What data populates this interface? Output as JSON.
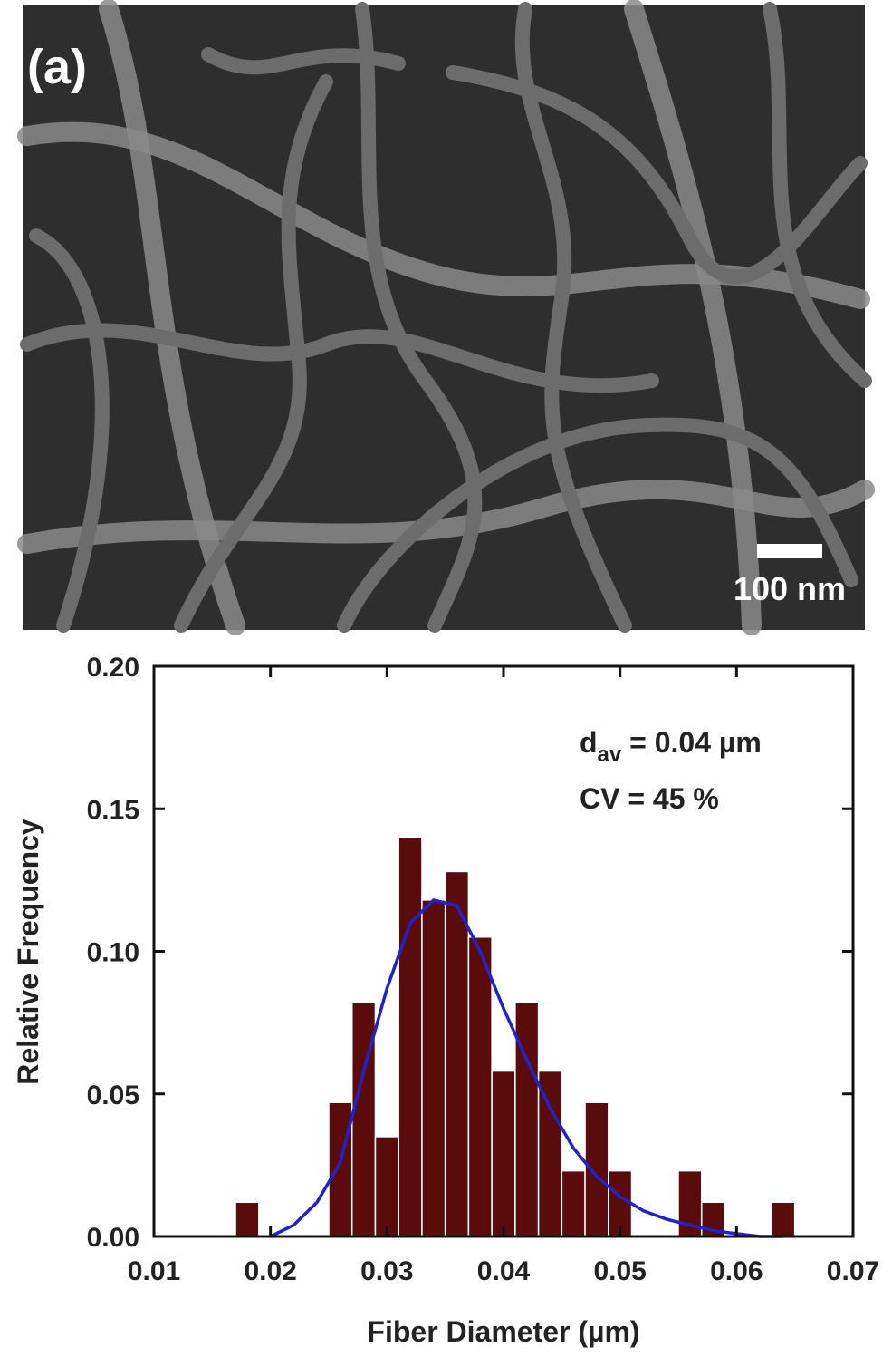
{
  "image": {
    "panel_label": "(a)",
    "scale_bar_label": "100 nm"
  },
  "chart_data": {
    "type": "histogram",
    "x_label": "Fiber Diameter (µm)",
    "y_label": "Relative Frequency",
    "annotations": [
      {
        "text": "d",
        "subscript": "av",
        "after": " = 0.04 µm"
      },
      {
        "text": "CV = 45 %"
      }
    ],
    "bins": [
      0.017,
      0.019,
      0.021,
      0.023,
      0.025,
      0.027,
      0.029,
      0.031,
      0.033,
      0.035,
      0.037,
      0.039,
      0.041,
      0.043,
      0.045,
      0.047,
      0.049,
      0.051,
      0.053,
      0.055,
      0.057,
      0.059,
      0.061,
      0.063,
      0.065
    ],
    "values": [
      0.012,
      0,
      0,
      0,
      0.047,
      0.082,
      0.035,
      0.14,
      0.118,
      0.128,
      0.105,
      0.058,
      0.082,
      0.058,
      0.023,
      0.047,
      0.023,
      0,
      0,
      0.023,
      0.012,
      0,
      0,
      0.012
    ],
    "color": "#5a0c0c",
    "fit_curve": {
      "type": "line",
      "color": "#2222cc",
      "x": [
        0.02,
        0.022,
        0.024,
        0.026,
        0.028,
        0.03,
        0.032,
        0.034,
        0.036,
        0.038,
        0.04,
        0.042,
        0.044,
        0.046,
        0.048,
        0.05,
        0.052,
        0.054,
        0.056,
        0.058,
        0.06,
        0.062,
        0.064
      ],
      "values": [
        0.0,
        0.004,
        0.012,
        0.026,
        0.058,
        0.087,
        0.11,
        0.118,
        0.116,
        0.1,
        0.08,
        0.062,
        0.045,
        0.031,
        0.021,
        0.014,
        0.009,
        0.006,
        0.004,
        0.002,
        0.001,
        0.0,
        0.0
      ]
    },
    "xlim": [
      0.01,
      0.07
    ],
    "xticks": [
      0.01,
      0.02,
      0.03,
      0.04,
      0.05,
      0.06,
      0.07
    ],
    "ylim": [
      0,
      0.2
    ],
    "yticks": [
      {
        "value": 0,
        "label": "0.00"
      },
      0.05,
      {
        "value": 0.1,
        "label": "0.10"
      },
      0.15,
      {
        "value": 0.2,
        "label": "0.20"
      }
    ]
  }
}
